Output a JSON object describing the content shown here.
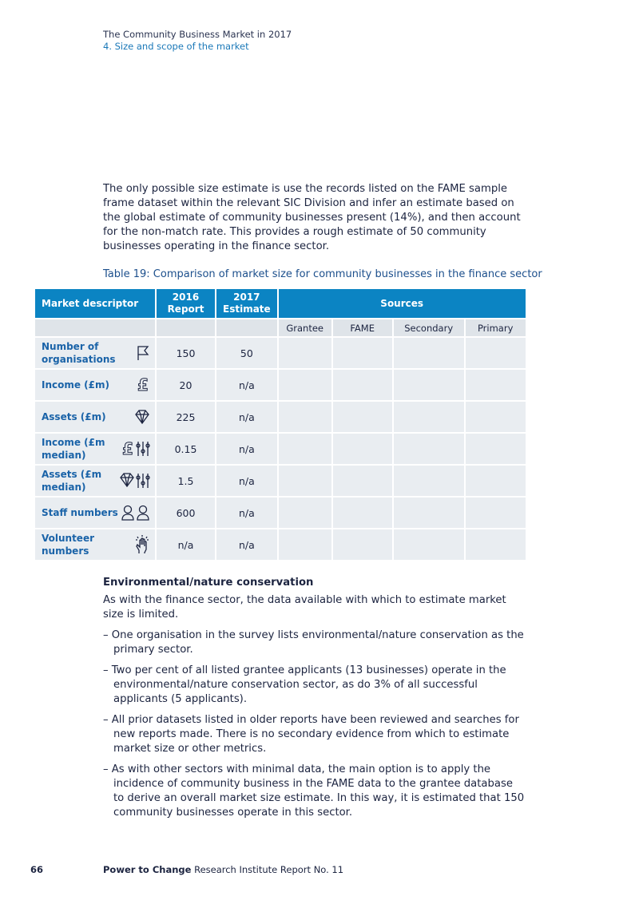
{
  "header": {
    "doc_title": "The Community Business Market in 2017",
    "section": "4. Size and scope of the market"
  },
  "intro": "The only possible size estimate is use the records listed on the FAME sample frame dataset within the relevant SIC Division and infer an estimate based on the global estimate of community businesses present (14%), and then account for the non-match rate. This provides a rough estimate of 50 community businesses operating in the finance sector.",
  "table": {
    "caption": "Table 19: Comparison of market size for community businesses in the finance sector",
    "headers": {
      "descriptor": "Market descriptor",
      "y2016": "2016 Report",
      "y2017": "2017 Estimate",
      "sources": "Sources"
    },
    "source_columns": [
      "Grantee",
      "FAME",
      "Secondary",
      "Primary"
    ],
    "header_color": "#0b84c3",
    "rows": [
      {
        "label": "Number of organisations",
        "icon": "flag-icon",
        "r2016": "150",
        "e2017": "50"
      },
      {
        "label": "Income (£m)",
        "icon": "pound-icon",
        "r2016": "20",
        "e2017": "n/a"
      },
      {
        "label": "Assets (£m)",
        "icon": "diamond-icon",
        "r2016": "225",
        "e2017": "n/a"
      },
      {
        "label": "Income (£m median)",
        "icon": "pound-sliders-icon",
        "r2016": "0.15",
        "e2017": "n/a"
      },
      {
        "label": "Assets (£m median)",
        "icon": "diamond-sliders-icon",
        "r2016": "1.5",
        "e2017": "n/a"
      },
      {
        "label": "Staff numbers",
        "icon": "people-icon",
        "r2016": "600",
        "e2017": "n/a"
      },
      {
        "label": "Volunteer numbers",
        "icon": "raised-hand-icon",
        "r2016": "n/a",
        "e2017": "n/a"
      }
    ]
  },
  "section": {
    "title": "Environmental/nature conservation",
    "para": "As with the finance sector, the data available with which to estimate market size is limited.",
    "bullets": [
      "– One organisation in the survey lists environmental/nature conservation as the primary sector.",
      "– Two per cent of all listed grantee applicants (13 businesses) operate in the environmental/nature conservation sector, as do 3% of all successful applicants (5 applicants).",
      "– All prior datasets listed in older reports have been reviewed and searches for new reports made. There is no secondary evidence from which to estimate market size or other metrics.",
      "– As with other sectors with minimal data, the main option is to apply the incidence of community business in the FAME data to the grantee database to derive an overall market size estimate. In this way, it is estimated that 150 community businesses operate in this sector."
    ]
  },
  "footer": {
    "page": "66",
    "org": "Power to Change",
    "report": "Research Institute Report No. 11"
  }
}
